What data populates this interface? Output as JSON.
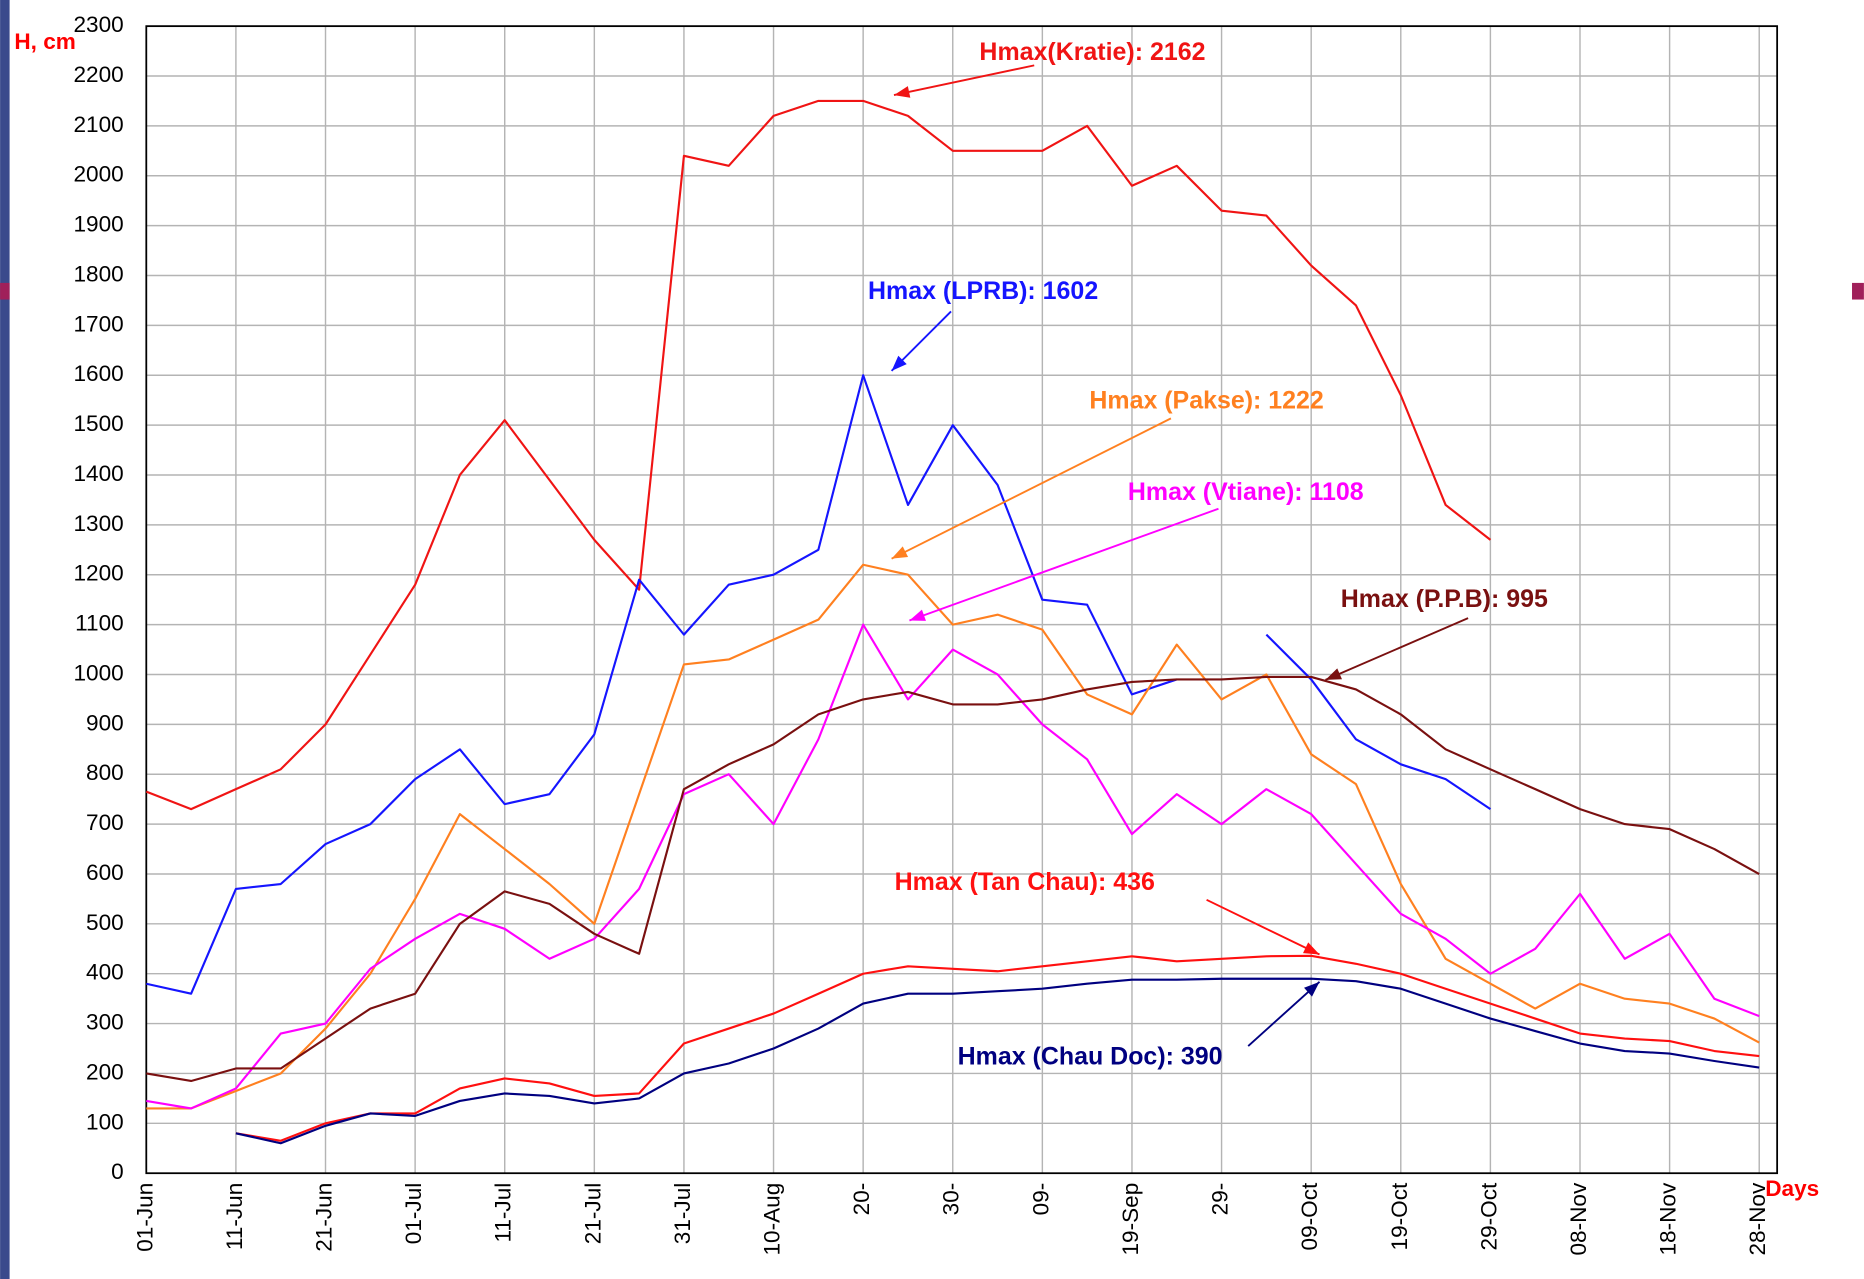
{
  "chart_data": {
    "type": "line",
    "y_label": "H, cm",
    "x_label": "Days",
    "xlim": [
      0,
      182
    ],
    "ylim": [
      0,
      2300
    ],
    "grid": true,
    "xticks": [
      {
        "value": 0,
        "label": "01-Jun"
      },
      {
        "value": 10,
        "label": "11-Jun"
      },
      {
        "value": 20,
        "label": "21-Jun"
      },
      {
        "value": 30,
        "label": "01-Jul"
      },
      {
        "value": 40,
        "label": "11-Jul"
      },
      {
        "value": 50,
        "label": "21-Jul"
      },
      {
        "value": 60,
        "label": "31-Jul"
      },
      {
        "value": 70,
        "label": "10-Aug"
      },
      {
        "value": 80,
        "label": "20-"
      },
      {
        "value": 90,
        "label": "30-"
      },
      {
        "value": 100,
        "label": "09-"
      },
      {
        "value": 110,
        "label": "19-Sep"
      },
      {
        "value": 120,
        "label": "29-"
      },
      {
        "value": 130,
        "label": "09-Oct"
      },
      {
        "value": 140,
        "label": "19-Oct"
      },
      {
        "value": 150,
        "label": "29-Oct"
      },
      {
        "value": 160,
        "label": "08-Nov"
      },
      {
        "value": 170,
        "label": "18-Nov"
      },
      {
        "value": 180,
        "label": "28-Nov"
      }
    ],
    "yticks": [
      0,
      100,
      200,
      300,
      400,
      500,
      600,
      700,
      800,
      900,
      1000,
      1100,
      1200,
      1300,
      1400,
      1500,
      1600,
      1700,
      1800,
      1900,
      2000,
      2100,
      2200,
      2300
    ],
    "x": [
      0,
      5,
      10,
      15,
      20,
      25,
      30,
      35,
      40,
      45,
      50,
      55,
      60,
      65,
      70,
      75,
      80,
      85,
      90,
      95,
      100,
      105,
      110,
      115,
      120,
      125,
      130,
      135,
      140,
      145,
      150,
      155,
      160,
      165,
      170,
      175,
      180
    ],
    "series": [
      {
        "color": "#f01414",
        "values": [
          765,
          730,
          770,
          810,
          900,
          1040,
          1180,
          1400,
          1510,
          1390,
          1270,
          1170,
          2040,
          2020,
          2120,
          2150,
          2150,
          2120,
          2050,
          2050,
          2050,
          2100,
          1980,
          2020,
          1930,
          1920,
          1820,
          1740,
          1560,
          1340,
          1270,
          null,
          null,
          null,
          null,
          null,
          null
        ]
      },
      {
        "color": "#1515ff",
        "values": [
          380,
          360,
          570,
          580,
          660,
          700,
          790,
          850,
          740,
          760,
          880,
          1190,
          1080,
          1180,
          1200,
          1250,
          1600,
          1340,
          1500,
          1380,
          1150,
          1140,
          960,
          990,
          null,
          1080,
          990,
          870,
          820,
          790,
          730,
          null,
          null,
          null,
          null,
          null,
          null
        ]
      },
      {
        "color": "#ff8020",
        "values": [
          130,
          130,
          165,
          200,
          290,
          400,
          550,
          720,
          650,
          580,
          500,
          760,
          1020,
          1030,
          1070,
          1110,
          1220,
          1200,
          1100,
          1120,
          1090,
          960,
          920,
          1060,
          950,
          1000,
          840,
          780,
          580,
          430,
          380,
          330,
          380,
          350,
          340,
          310,
          262
        ]
      },
      {
        "color": "#ff00ff",
        "values": [
          145,
          130,
          170,
          280,
          300,
          410,
          470,
          520,
          490,
          430,
          470,
          570,
          760,
          800,
          700,
          870,
          1100,
          950,
          1050,
          1000,
          900,
          830,
          680,
          760,
          700,
          770,
          720,
          620,
          520,
          470,
          400,
          450,
          560,
          430,
          480,
          350,
          315
        ]
      },
      {
        "color": "#7a1010",
        "values": [
          200,
          185,
          210,
          210,
          270,
          330,
          360,
          500,
          565,
          540,
          480,
          440,
          770,
          820,
          860,
          920,
          950,
          965,
          940,
          940,
          950,
          970,
          985,
          990,
          990,
          995,
          995,
          970,
          920,
          850,
          810,
          770,
          730,
          700,
          690,
          650,
          600
        ]
      },
      {
        "color": "#ff1010",
        "values": [
          null,
          null,
          80,
          65,
          100,
          120,
          120,
          170,
          190,
          180,
          155,
          160,
          260,
          290,
          320,
          360,
          400,
          415,
          410,
          405,
          415,
          425,
          435,
          425,
          430,
          435,
          436,
          420,
          400,
          370,
          340,
          310,
          280,
          270,
          265,
          245,
          235
        ]
      },
      {
        "color": "#000080",
        "values": [
          null,
          null,
          80,
          60,
          95,
          120,
          115,
          145,
          160,
          155,
          140,
          150,
          200,
          220,
          250,
          290,
          340,
          360,
          360,
          365,
          370,
          380,
          388,
          388,
          390,
          390,
          390,
          385,
          370,
          340,
          310,
          285,
          260,
          245,
          240,
          225,
          212
        ]
      }
    ],
    "annotations": [
      "Hmax(Kratie): 2162",
      "Hmax (LPRB): 1602",
      "Hmax (Pakse): 1222",
      "Hmax (Vtiane): 1108",
      "Hmax (P.P.B): 995",
      "Hmax (Tan Chau): 436",
      "Hmax (Chau Doc): 390"
    ]
  }
}
